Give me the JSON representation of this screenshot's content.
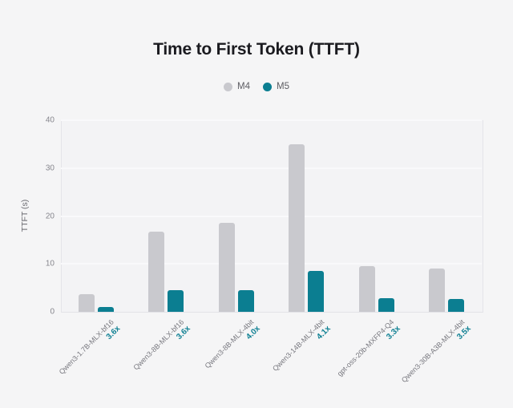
{
  "chart_data": {
    "type": "bar",
    "title": "Time to First Token (TTFT)",
    "categories": [
      "Qwen3-1.7B-MLX-bf16",
      "Qwen3-8B-MLX-bf16",
      "Qwen3-8B-MLX-4bit",
      "Qwen3-14B-MLX-4bit",
      "gpt-oss-20b-MXFP4-Q4",
      "Qwen3-30B-A3B-MLX-4bit"
    ],
    "speedup_labels": [
      "3.6x",
      "3.6x",
      "4.0x",
      "4.1x",
      "3.3x",
      "3.5x"
    ],
    "series": [
      {
        "name": "M4",
        "color": "#c9c9ce",
        "values": [
          3.7,
          16.8,
          18.5,
          35.0,
          9.5,
          9.1
        ]
      },
      {
        "name": "M5",
        "color": "#0b7e91",
        "values": [
          1.0,
          4.6,
          4.6,
          8.5,
          2.9,
          2.6
        ]
      }
    ],
    "xlabel": "",
    "ylabel": "TTFT (s)",
    "ylim": [
      0,
      40
    ],
    "yticks": [
      0,
      10,
      20,
      30,
      40
    ],
    "grid": true,
    "legend_position": "top-center"
  },
  "colors": {
    "page_background": "#f5f5f6",
    "plot_background": "#f3f3f5",
    "grid_line": "#f9f9fb",
    "axis_line": "#e3e3e8",
    "title_text": "#1b1b20",
    "tick_text": "#86868d",
    "category_text": "#77777e",
    "legend_text": "#5c5c62",
    "bar_gray": "#c9c9ce",
    "bar_teal": "#0b7e91",
    "speedup_text": "#0b7e91"
  }
}
